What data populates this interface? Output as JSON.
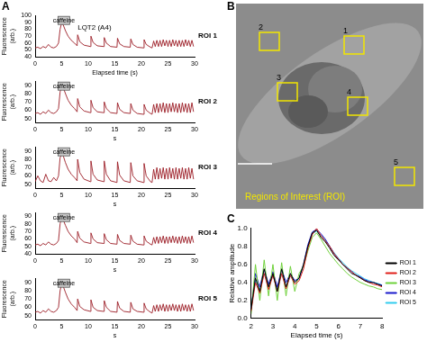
{
  "panel_labels": [
    "A",
    "B",
    "C"
  ],
  "image_panel": {
    "title": "Regions of Interest (ROI)",
    "roi_labels": [
      "1",
      "2",
      "3",
      "4",
      "5"
    ]
  },
  "chart_data": [
    {
      "type": "line",
      "title": "ROI 1",
      "x_label": "Elapsed time (s)",
      "y_label": "Fluorescence (arb.)",
      "grid": false,
      "xlim": [
        0,
        30
      ],
      "xticks": [
        0,
        5,
        10,
        15,
        20,
        25,
        30
      ],
      "ylim": [
        40,
        100
      ],
      "yticks": [
        40,
        50,
        60,
        70,
        80,
        90,
        100
      ],
      "annotations": [
        {
          "text": "caffeine",
          "x_start": 4.3,
          "x_end": 6.5
        },
        {
          "text": "LQT2 (A4)",
          "x": 8,
          "y": 82
        }
      ],
      "x": [
        0,
        0.5,
        1,
        1.5,
        2,
        2.5,
        3,
        3.5,
        4,
        4.4,
        4.7,
        5.0,
        5.3,
        5.7,
        6.2,
        6.8,
        7.4,
        7.9,
        8.0,
        8.4,
        9.2,
        10.4,
        10.5,
        10.9,
        11.7,
        12.9,
        13.0,
        13.4,
        14.2,
        15.4,
        15.5,
        15.9,
        16.7,
        17.9,
        18.0,
        18.4,
        19.2,
        20.4,
        20.5,
        20.9,
        21.7,
        22.0,
        22.3,
        22.6,
        22.9,
        23.2,
        23.5,
        23.8,
        24.1,
        24.4,
        24.7,
        25.0,
        25.3,
        25.6,
        25.9,
        26.2,
        26.5,
        26.8,
        27.1,
        27.4,
        27.7,
        28.0,
        28.3,
        28.6,
        28.9,
        29.2,
        29.5,
        29.8
      ],
      "series": [
        {
          "color": "#9b1b24",
          "values": [
            53,
            54,
            52,
            55,
            53,
            58,
            54,
            53,
            55,
            60,
            80,
            90,
            86,
            78,
            70,
            64,
            60,
            56,
            72,
            62,
            57,
            55,
            70,
            61,
            56,
            55,
            68,
            60,
            55,
            54,
            67,
            59,
            55,
            54,
            66,
            58,
            54,
            53,
            65,
            58,
            54,
            53,
            63,
            55,
            64,
            55,
            64,
            55,
            65,
            56,
            64,
            55,
            64,
            55,
            65,
            56,
            64,
            55,
            64,
            55,
            64,
            55,
            65,
            56,
            64,
            55,
            64,
            55
          ]
        }
      ]
    },
    {
      "type": "line",
      "title": "ROI 2",
      "x_label": "s",
      "y_label": "Fluorescence (arb.)",
      "grid": false,
      "xlim": [
        0,
        30
      ],
      "xticks": [
        0,
        5,
        10,
        15,
        20,
        25,
        30
      ],
      "ylim": [
        45,
        95
      ],
      "yticks": [
        50,
        60,
        70,
        80,
        90
      ],
      "annotations": [
        {
          "text": "caffeine",
          "x_start": 4.3,
          "x_end": 6.5
        }
      ],
      "x": [
        0,
        0.5,
        1,
        1.5,
        2,
        2.5,
        3,
        3.5,
        4,
        4.4,
        4.7,
        5.0,
        5.3,
        5.7,
        6.2,
        6.8,
        7.4,
        7.9,
        8.0,
        8.4,
        9.2,
        10.4,
        10.5,
        10.9,
        11.7,
        12.9,
        13.0,
        13.4,
        14.2,
        15.4,
        15.5,
        15.9,
        16.7,
        17.9,
        18.0,
        18.4,
        19.2,
        20.4,
        20.5,
        20.9,
        21.7,
        22.0,
        22.3,
        22.6,
        22.9,
        23.2,
        23.5,
        23.8,
        24.1,
        24.4,
        24.7,
        25.0,
        25.3,
        25.6,
        25.9,
        26.2,
        26.5,
        26.8,
        27.1,
        27.4,
        27.7,
        28.0,
        28.3,
        28.6,
        28.9,
        29.2,
        29.5,
        29.8
      ],
      "series": [
        {
          "color": "#9b1b24",
          "values": [
            56,
            57,
            55,
            58,
            56,
            60,
            57,
            56,
            58,
            62,
            82,
            91,
            87,
            80,
            72,
            66,
            62,
            58,
            74,
            64,
            59,
            57,
            72,
            63,
            58,
            57,
            70,
            62,
            57,
            56,
            69,
            61,
            57,
            56,
            68,
            60,
            56,
            55,
            67,
            60,
            56,
            55,
            67,
            57,
            68,
            57,
            68,
            58,
            69,
            57,
            68,
            57,
            68,
            58,
            69,
            58,
            68,
            57,
            68,
            57,
            69,
            58,
            68,
            57,
            68,
            57,
            69,
            58
          ]
        }
      ]
    },
    {
      "type": "line",
      "title": "ROI 3",
      "x_label": "s",
      "y_label": "Fluorescence (arb.)",
      "grid": false,
      "xlim": [
        0,
        30
      ],
      "xticks": [
        0,
        5,
        10,
        15,
        20,
        25,
        30
      ],
      "ylim": [
        45,
        95
      ],
      "yticks": [
        50,
        60,
        70,
        80,
        90
      ],
      "annotations": [
        {
          "text": "caffeine",
          "x_start": 4.3,
          "x_end": 6.5
        }
      ],
      "x": [
        0,
        0.5,
        1,
        1.5,
        2,
        2.5,
        3,
        3.5,
        4,
        4.4,
        4.7,
        5.0,
        5.3,
        5.7,
        6.2,
        6.8,
        7.4,
        7.9,
        8.0,
        8.4,
        9.2,
        10.4,
        10.5,
        10.9,
        11.7,
        12.9,
        13.0,
        13.4,
        14.2,
        15.4,
        15.5,
        15.9,
        16.7,
        17.9,
        18.0,
        18.4,
        19.2,
        20.4,
        20.5,
        20.9,
        21.7,
        22.0,
        22.3,
        22.6,
        22.9,
        23.2,
        23.5,
        23.8,
        24.1,
        24.4,
        24.7,
        25.0,
        25.3,
        25.6,
        25.9,
        26.2,
        26.5,
        26.8,
        27.1,
        27.4,
        27.7,
        28.0,
        28.3,
        28.6,
        28.9,
        29.2,
        29.5,
        29.8
      ],
      "series": [
        {
          "color": "#9b1b24",
          "values": [
            53,
            60,
            54,
            52,
            62,
            54,
            53,
            58,
            54,
            60,
            82,
            86,
            84,
            76,
            68,
            62,
            58,
            54,
            80,
            64,
            56,
            53,
            78,
            62,
            55,
            53,
            78,
            62,
            54,
            52,
            77,
            61,
            54,
            52,
            76,
            60,
            54,
            52,
            75,
            60,
            53,
            52,
            68,
            56,
            70,
            56,
            69,
            57,
            70,
            56,
            69,
            56,
            70,
            57,
            69,
            56,
            70,
            56,
            69,
            57,
            70,
            56,
            69,
            56,
            70,
            57,
            69,
            56
          ]
        }
      ]
    },
    {
      "type": "line",
      "title": "ROI 4",
      "x_label": "s",
      "y_label": "Fluorescence (arb.)",
      "grid": false,
      "xlim": [
        0,
        30
      ],
      "xticks": [
        0,
        5,
        10,
        15,
        20,
        25,
        30
      ],
      "ylim": [
        40,
        95
      ],
      "yticks": [
        40,
        50,
        60,
        70,
        80,
        90
      ],
      "annotations": [
        {
          "text": "caffeine",
          "x_start": 4.3,
          "x_end": 6.5
        }
      ],
      "x": [
        0,
        0.5,
        1,
        1.5,
        2,
        2.5,
        3,
        3.5,
        4,
        4.4,
        4.7,
        5.0,
        5.3,
        5.7,
        6.2,
        6.8,
        7.4,
        7.9,
        8.0,
        8.4,
        9.2,
        10.4,
        10.5,
        10.9,
        11.7,
        12.9,
        13.0,
        13.4,
        14.2,
        15.4,
        15.5,
        15.9,
        16.7,
        17.9,
        18.0,
        18.4,
        19.2,
        20.4,
        20.5,
        20.9,
        21.7,
        22.0,
        22.3,
        22.6,
        22.9,
        23.2,
        23.5,
        23.8,
        24.1,
        24.4,
        24.7,
        25.0,
        25.3,
        25.6,
        25.9,
        26.2,
        26.5,
        26.8,
        27.1,
        27.4,
        27.7,
        28.0,
        28.3,
        28.6,
        28.9,
        29.2,
        29.5,
        29.8
      ],
      "series": [
        {
          "color": "#9b1b24",
          "values": [
            52,
            53,
            51,
            54,
            52,
            56,
            53,
            52,
            54,
            58,
            80,
            90,
            85,
            78,
            70,
            64,
            60,
            55,
            70,
            61,
            56,
            54,
            68,
            60,
            55,
            54,
            67,
            59,
            54,
            53,
            66,
            58,
            54,
            53,
            65,
            57,
            53,
            52,
            64,
            57,
            53,
            52,
            62,
            54,
            63,
            54,
            63,
            55,
            64,
            54,
            63,
            54,
            63,
            55,
            64,
            55,
            63,
            54,
            63,
            54,
            64,
            55,
            63,
            54,
            63,
            54,
            64,
            55
          ]
        }
      ]
    },
    {
      "type": "line",
      "title": "ROI 5",
      "x_label": "s",
      "y_label": "Fluorescence (arb.)",
      "grid": false,
      "xlim": [
        0,
        30
      ],
      "xticks": [
        0,
        5,
        10,
        15,
        20,
        25,
        30
      ],
      "ylim": [
        45,
        95
      ],
      "yticks": [
        50,
        60,
        70,
        80,
        90
      ],
      "annotations": [
        {
          "text": "caffeine",
          "x_start": 4.3,
          "x_end": 6.5
        }
      ],
      "x": [
        0,
        0.5,
        1,
        1.5,
        2,
        2.5,
        3,
        3.5,
        4,
        4.4,
        4.7,
        5.0,
        5.3,
        5.7,
        6.2,
        6.8,
        7.4,
        7.9,
        8.0,
        8.4,
        9.2,
        10.4,
        10.5,
        10.9,
        11.7,
        12.9,
        13.0,
        13.4,
        14.2,
        15.4,
        15.5,
        15.9,
        16.7,
        17.9,
        18.0,
        18.4,
        19.2,
        20.4,
        20.5,
        20.9,
        21.7,
        22.0,
        22.3,
        22.6,
        22.9,
        23.2,
        23.5,
        23.8,
        24.1,
        24.4,
        24.7,
        25.0,
        25.3,
        25.6,
        25.9,
        26.2,
        26.5,
        26.8,
        27.1,
        27.4,
        27.7,
        28.0,
        28.3,
        28.6,
        28.9,
        29.2,
        29.5,
        29.8
      ],
      "series": [
        {
          "color": "#9b1b24",
          "values": [
            54,
            55,
            53,
            56,
            54,
            58,
            55,
            54,
            56,
            60,
            80,
            89,
            85,
            78,
            70,
            64,
            60,
            56,
            70,
            61,
            57,
            55,
            69,
            60,
            56,
            55,
            68,
            60,
            55,
            54,
            67,
            59,
            55,
            54,
            66,
            58,
            55,
            54,
            65,
            58,
            54,
            53,
            62,
            55,
            63,
            55,
            63,
            56,
            64,
            55,
            63,
            55,
            63,
            56,
            64,
            56,
            63,
            55,
            63,
            55,
            64,
            56,
            63,
            55,
            63,
            55,
            64,
            56
          ]
        }
      ]
    },
    {
      "type": "line",
      "x_label": "Elapsed time (s)",
      "y_label": "Relative amplitude",
      "grid": false,
      "legend": "right",
      "xlim": [
        2,
        8
      ],
      "xticks": [
        2,
        3,
        4,
        5,
        6,
        7,
        8
      ],
      "ylim": [
        0,
        1
      ],
      "yticks": [
        {
          "value": 0,
          "label": "0.0"
        },
        0.2,
        0.4,
        0.6,
        0.8,
        {
          "value": 1,
          "label": "1.0"
        }
      ],
      "x": [
        2.0,
        2.2,
        2.4,
        2.6,
        2.8,
        3.0,
        3.2,
        3.4,
        3.6,
        3.8,
        4.0,
        4.2,
        4.4,
        4.6,
        4.8,
        5.0,
        5.2,
        5.4,
        5.6,
        5.8,
        6.0,
        6.2,
        6.4,
        6.6,
        6.8,
        7.0,
        7.2,
        7.4,
        7.6,
        7.8,
        8.0
      ],
      "series": [
        {
          "name": "ROI 1",
          "color": "#000000",
          "values": [
            0.1,
            0.45,
            0.3,
            0.55,
            0.35,
            0.5,
            0.3,
            0.55,
            0.35,
            0.5,
            0.4,
            0.45,
            0.6,
            0.8,
            0.95,
            0.98,
            0.9,
            0.85,
            0.78,
            0.7,
            0.65,
            0.6,
            0.55,
            0.5,
            0.48,
            0.45,
            0.42,
            0.4,
            0.4,
            0.38,
            0.36
          ]
        },
        {
          "name": "ROI 2",
          "color": "#e0201b",
          "values": [
            0.08,
            0.4,
            0.28,
            0.5,
            0.32,
            0.48,
            0.3,
            0.5,
            0.33,
            0.48,
            0.38,
            0.42,
            0.55,
            0.78,
            0.93,
            1.0,
            0.92,
            0.86,
            0.8,
            0.72,
            0.66,
            0.6,
            0.56,
            0.52,
            0.48,
            0.45,
            0.42,
            0.4,
            0.38,
            0.37,
            0.35
          ]
        },
        {
          "name": "ROI 3",
          "color": "#6fd13a",
          "values": [
            0.05,
            0.6,
            0.2,
            0.65,
            0.25,
            0.6,
            0.2,
            0.62,
            0.25,
            0.58,
            0.3,
            0.5,
            0.58,
            0.75,
            0.9,
            0.95,
            0.88,
            0.8,
            0.72,
            0.66,
            0.6,
            0.55,
            0.5,
            0.46,
            0.43,
            0.4,
            0.38,
            0.36,
            0.35,
            0.33,
            0.32
          ]
        },
        {
          "name": "ROI 4",
          "color": "#1a1acc",
          "values": [
            0.1,
            0.5,
            0.35,
            0.55,
            0.38,
            0.52,
            0.35,
            0.55,
            0.4,
            0.5,
            0.42,
            0.45,
            0.6,
            0.82,
            0.96,
            0.99,
            0.94,
            0.88,
            0.8,
            0.72,
            0.66,
            0.6,
            0.56,
            0.52,
            0.48,
            0.46,
            0.43,
            0.41,
            0.4,
            0.38,
            0.37
          ]
        },
        {
          "name": "ROI 5",
          "color": "#33ccee",
          "values": [
            0.12,
            0.42,
            0.32,
            0.5,
            0.35,
            0.48,
            0.33,
            0.5,
            0.36,
            0.47,
            0.4,
            0.44,
            0.58,
            0.8,
            0.94,
            0.97,
            0.92,
            0.87,
            0.8,
            0.73,
            0.67,
            0.62,
            0.57,
            0.53,
            0.5,
            0.47,
            0.44,
            0.42,
            0.4,
            0.39,
            0.37
          ]
        }
      ]
    }
  ]
}
